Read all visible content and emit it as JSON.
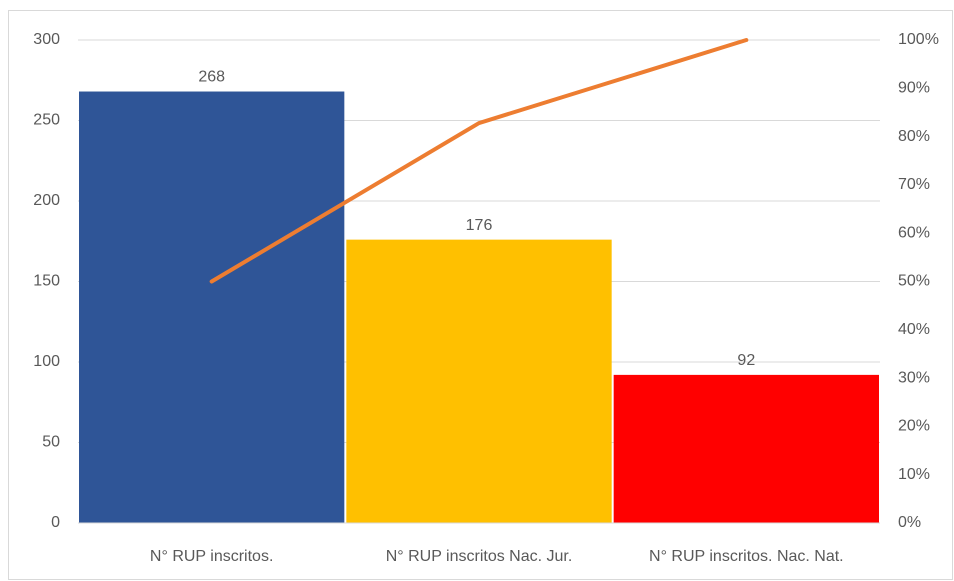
{
  "chart_data": {
    "type": "pareto",
    "categories": [
      "N° RUP inscritos.",
      "N° RUP inscritos Nac. Jur.",
      "N° RUP inscritos. Nac. Nat."
    ],
    "series": [
      {
        "type": "bar",
        "colors": [
          "#2f5597",
          "#ffc000",
          "#ff0000"
        ],
        "values": [
          268,
          176,
          92
        ]
      },
      {
        "type": "line",
        "color": "#ed7d31",
        "axis": "y2",
        "values": [
          50,
          82.8,
          100
        ]
      }
    ],
    "ylim": [
      0,
      300
    ],
    "yticks": [
      0,
      50,
      100,
      150,
      200,
      250,
      300
    ],
    "y2lim": [
      0,
      100
    ],
    "y2ticks": [
      {
        "value": 0,
        "label": "0%"
      },
      {
        "value": 10,
        "label": "10%"
      },
      {
        "value": 20,
        "label": "20%"
      },
      {
        "value": 30,
        "label": "30%"
      },
      {
        "value": 40,
        "label": "40%"
      },
      {
        "value": 50,
        "label": "50%"
      },
      {
        "value": 60,
        "label": "60%"
      },
      {
        "value": 70,
        "label": "70%"
      },
      {
        "value": 80,
        "label": "80%"
      },
      {
        "value": 90,
        "label": "90%"
      },
      {
        "value": 100,
        "label": "100%"
      }
    ],
    "grid": true
  }
}
